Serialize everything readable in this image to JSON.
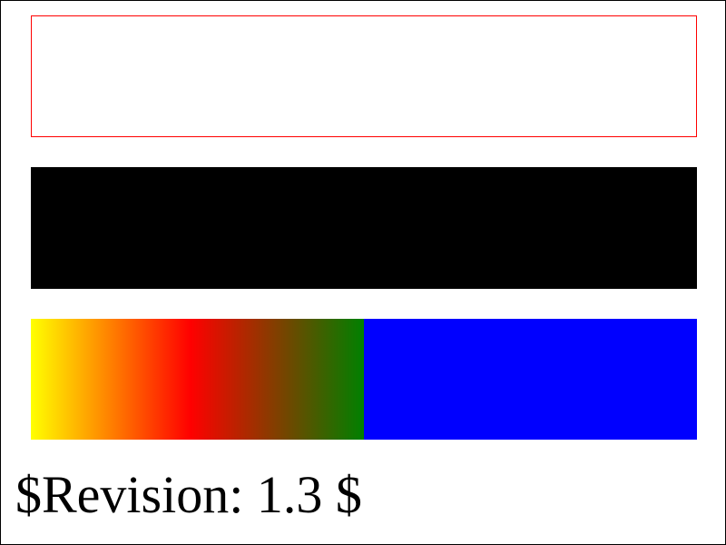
{
  "revision_text": "$Revision: 1.3 $",
  "colors": {
    "outline_stroke": "#ff0000",
    "filled_rect": "#000000",
    "gradient_stops": [
      "#ffff00",
      "#ff0000",
      "#008000"
    ],
    "solid_rect": "#0000ff"
  }
}
